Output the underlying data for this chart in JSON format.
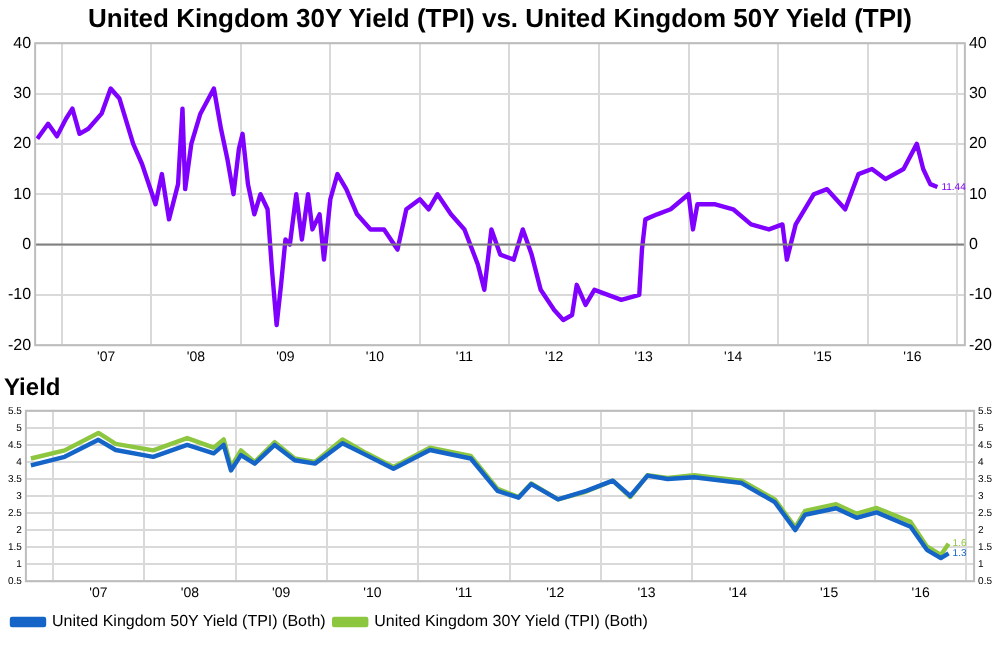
{
  "chart_data": [
    {
      "type": "line",
      "title": "United Kingdom 30Y Yield (TPI) vs. United Kingdom 50Y Yield (TPI)",
      "xlim": [
        "2006-09-15",
        "2017-02-01"
      ],
      "xticks": [
        {
          "value": "2007-01-01",
          "label": null
        },
        {
          "value": "2007-07-02",
          "label": "'07"
        },
        {
          "value": "2008-01-01",
          "label": null
        },
        {
          "value": "2008-07-02",
          "label": "'08"
        },
        {
          "value": "2009-01-01",
          "label": null
        },
        {
          "value": "2009-07-02",
          "label": "'09"
        },
        {
          "value": "2010-01-01",
          "label": null
        },
        {
          "value": "2010-07-02",
          "label": "'10"
        },
        {
          "value": "2011-01-01",
          "label": null
        },
        {
          "value": "2011-07-02",
          "label": "'11"
        },
        {
          "value": "2012-01-01",
          "label": null
        },
        {
          "value": "2012-07-02",
          "label": "'12"
        },
        {
          "value": "2013-01-01",
          "label": null
        },
        {
          "value": "2013-07-02",
          "label": "'13"
        },
        {
          "value": "2014-01-01",
          "label": null
        },
        {
          "value": "2014-07-02",
          "label": "'14"
        },
        {
          "value": "2015-01-01",
          "label": null
        },
        {
          "value": "2015-07-02",
          "label": "'15"
        },
        {
          "value": "2016-01-01",
          "label": null
        },
        {
          "value": "2016-07-02",
          "label": "'16"
        },
        {
          "value": "2017-01-01",
          "label": null
        }
      ],
      "ylim": [
        -20,
        40
      ],
      "yticks": [
        -20,
        -10,
        0,
        10,
        20,
        30,
        40
      ],
      "y2lim": [
        -20,
        40
      ],
      "y2ticks": [
        -20,
        -10,
        0,
        10,
        20,
        30,
        40
      ],
      "grid": true,
      "legend": false,
      "ref_lines": [
        {
          "axis": "y",
          "value": 0,
          "color": "#808080"
        }
      ],
      "annotations": [
        {
          "text": "11.44",
          "x": "2016-10-12",
          "y": 11.44
        }
      ],
      "series": [
        {
          "color": "#8000ff",
          "x": [
            "2006-09-24",
            "2006-11-07",
            "2006-12-13",
            "2007-01-19",
            "2007-02-14",
            "2007-03-15",
            "2007-04-20",
            "2007-06-13",
            "2007-07-20",
            "2007-08-25",
            "2007-10-20",
            "2007-11-25",
            "2008-01-19",
            "2008-02-14",
            "2008-03-14",
            "2008-04-20",
            "2008-05-08",
            "2008-05-19",
            "2008-06-13",
            "2008-07-20",
            "2008-09-13",
            "2008-10-12",
            "2008-11-07",
            "2008-12-02",
            "2008-12-24",
            "2009-01-08",
            "2009-01-30",
            "2009-02-25",
            "2009-03-22",
            "2009-04-20",
            "2009-05-08",
            "2009-05-27",
            "2009-06-14",
            "2009-07-02",
            "2009-07-20",
            "2009-08-15",
            "2009-09-07",
            "2009-10-02",
            "2009-10-20",
            "2009-11-18",
            "2009-12-06",
            "2010-01-01",
            "2010-01-30",
            "2010-03-07",
            "2010-04-20",
            "2010-06-14",
            "2010-08-08",
            "2010-10-02",
            "2010-11-07",
            "2011-01-01",
            "2011-02-06",
            "2011-03-14",
            "2011-05-08",
            "2011-07-02",
            "2011-08-26",
            "2011-09-21",
            "2011-10-20",
            "2011-11-25",
            "2012-01-19",
            "2012-02-25",
            "2012-04-01",
            "2012-05-08",
            "2012-07-02",
            "2012-08-08",
            "2012-09-13",
            "2012-10-02",
            "2012-11-07",
            "2012-12-13",
            "2013-02-06",
            "2013-04-02",
            "2013-06-14",
            "2013-06-25",
            "2013-07-09",
            "2013-08-26",
            "2013-10-20",
            "2014-01-01",
            "2014-01-19",
            "2014-02-06",
            "2014-04-20",
            "2014-07-02",
            "2014-09-13",
            "2014-11-25",
            "2015-01-19",
            "2015-02-06",
            "2015-03-14",
            "2015-05-27",
            "2015-07-20",
            "2015-10-02",
            "2015-11-25",
            "2016-01-19",
            "2016-03-14",
            "2016-05-27",
            "2016-07-20",
            "2016-08-15",
            "2016-09-13",
            "2016-10-12"
          ],
          "values": [
            21,
            24,
            21.5,
            25,
            27,
            22,
            23,
            26,
            31,
            29,
            20,
            16,
            8,
            14,
            5,
            12,
            27,
            11,
            20,
            26,
            31,
            23,
            17,
            10,
            19,
            22,
            12,
            6,
            10,
            7,
            -5,
            -16,
            -8,
            1,
            0,
            10,
            1,
            10,
            3,
            6,
            -3,
            9,
            14,
            11,
            6,
            3,
            3,
            -1,
            7,
            9,
            7,
            10,
            6,
            3,
            -4,
            -9,
            3,
            -2,
            -3,
            3,
            -2,
            -9,
            -13,
            -15,
            -14,
            -8,
            -12,
            -9,
            -10,
            -11,
            -10,
            -1,
            5,
            6,
            7,
            10,
            3,
            8,
            8,
            7,
            4,
            3,
            4,
            -3,
            4,
            10,
            11,
            7,
            14,
            15,
            13,
            15,
            20,
            15,
            12,
            11.44
          ]
        }
      ]
    },
    {
      "type": "line",
      "title": "Yield",
      "xlim": [
        "2006-09-15",
        "2017-02-01"
      ],
      "xticks": [
        {
          "value": "2007-01-01",
          "label": null
        },
        {
          "value": "2007-07-02",
          "label": "'07"
        },
        {
          "value": "2008-01-01",
          "label": null
        },
        {
          "value": "2008-07-02",
          "label": "'08"
        },
        {
          "value": "2009-01-01",
          "label": null
        },
        {
          "value": "2009-07-02",
          "label": "'09"
        },
        {
          "value": "2010-01-01",
          "label": null
        },
        {
          "value": "2010-07-02",
          "label": "'10"
        },
        {
          "value": "2011-01-01",
          "label": null
        },
        {
          "value": "2011-07-02",
          "label": "'11"
        },
        {
          "value": "2012-01-01",
          "label": null
        },
        {
          "value": "2012-07-02",
          "label": "'12"
        },
        {
          "value": "2013-01-01",
          "label": null
        },
        {
          "value": "2013-07-02",
          "label": "'13"
        },
        {
          "value": "2014-01-01",
          "label": null
        },
        {
          "value": "2014-07-02",
          "label": "'14"
        },
        {
          "value": "2015-01-01",
          "label": null
        },
        {
          "value": "2015-07-02",
          "label": "'15"
        },
        {
          "value": "2016-01-01",
          "label": null
        },
        {
          "value": "2016-07-02",
          "label": "'16"
        },
        {
          "value": "2017-01-01",
          "label": null
        }
      ],
      "ylim": [
        0.5,
        5.5
      ],
      "yticks": [
        0.5,
        1.0,
        1.5,
        2.0,
        2.5,
        3.0,
        3.5,
        4.0,
        4.5,
        5.0,
        5.5
      ],
      "y2lim": [
        0.5,
        5.5
      ],
      "y2ticks": [
        0.5,
        1.0,
        1.5,
        2.0,
        2.5,
        3.0,
        3.5,
        4.0,
        4.5,
        5.0,
        5.5
      ],
      "grid": true,
      "legend": "bottom",
      "annotations": [
        {
          "text": "1.6",
          "x": "2016-10-22",
          "y": 1.6
        },
        {
          "text": "1.3",
          "x": "2016-10-22",
          "y": 1.32
        }
      ],
      "series": [
        {
          "name": "United Kingdom 50Y Yield (TPI) (Both)",
          "color": "#1565c8",
          "x": [
            "2006-10-05",
            "2007-02-17",
            "2007-07-02",
            "2007-09-09",
            "2008-02-06",
            "2008-06-21",
            "2008-10-05",
            "2008-11-14",
            "2008-12-13",
            "2009-01-22",
            "2009-03-18",
            "2009-06-06",
            "2009-08-25",
            "2009-11-14",
            "2010-03-04",
            "2010-06-07",
            "2010-09-24",
            "2011-02-17",
            "2011-07-30",
            "2011-11-14",
            "2012-02-06",
            "2012-03-28",
            "2012-07-13",
            "2012-11-03",
            "2013-02-17",
            "2013-04-28",
            "2013-07-06",
            "2013-09-24",
            "2014-01-08",
            "2014-07-17",
            "2014-11-27",
            "2015-02-17",
            "2015-03-28",
            "2015-07-30",
            "2015-10-20",
            "2016-01-08",
            "2016-05-23",
            "2016-07-27",
            "2016-09-21",
            "2016-10-22"
          ],
          "values": [
            3.9,
            4.15,
            4.65,
            4.35,
            4.15,
            4.5,
            4.25,
            4.5,
            3.75,
            4.2,
            3.95,
            4.5,
            4.05,
            3.95,
            4.55,
            4.2,
            3.8,
            4.35,
            4.1,
            3.15,
            2.95,
            3.35,
            2.9,
            3.15,
            3.45,
            3.0,
            3.6,
            3.5,
            3.55,
            3.38,
            2.82,
            2.0,
            2.45,
            2.64,
            2.36,
            2.52,
            2.1,
            1.42,
            1.18,
            1.32
          ]
        },
        {
          "name": "United Kingdom 30Y Yield (TPI) (Both)",
          "color": "#8dc63f",
          "x": [
            "2006-10-05",
            "2007-02-17",
            "2007-07-02",
            "2007-09-09",
            "2008-02-06",
            "2008-06-21",
            "2008-10-05",
            "2008-11-14",
            "2008-12-13",
            "2009-01-22",
            "2009-03-18",
            "2009-06-06",
            "2009-08-25",
            "2009-11-14",
            "2010-03-04",
            "2010-06-07",
            "2010-09-24",
            "2011-02-17",
            "2011-07-30",
            "2011-11-14",
            "2012-02-06",
            "2012-03-28",
            "2012-07-13",
            "2012-11-03",
            "2013-02-17",
            "2013-04-28",
            "2013-07-06",
            "2013-09-24",
            "2014-01-08",
            "2014-07-17",
            "2014-11-27",
            "2015-02-17",
            "2015-03-28",
            "2015-07-30",
            "2015-10-20",
            "2016-01-08",
            "2016-05-23",
            "2016-07-27",
            "2016-09-21",
            "2016-10-22"
          ],
          "values": [
            4.1,
            4.34,
            4.85,
            4.53,
            4.34,
            4.7,
            4.42,
            4.66,
            3.85,
            4.34,
            4.0,
            4.58,
            4.1,
            4.0,
            4.66,
            4.26,
            3.85,
            4.42,
            4.18,
            3.21,
            2.97,
            3.37,
            2.9,
            3.13,
            3.45,
            2.97,
            3.61,
            3.53,
            3.61,
            3.45,
            2.9,
            2.08,
            2.56,
            2.76,
            2.48,
            2.65,
            2.24,
            1.52,
            1.27,
            1.6
          ]
        }
      ]
    }
  ]
}
